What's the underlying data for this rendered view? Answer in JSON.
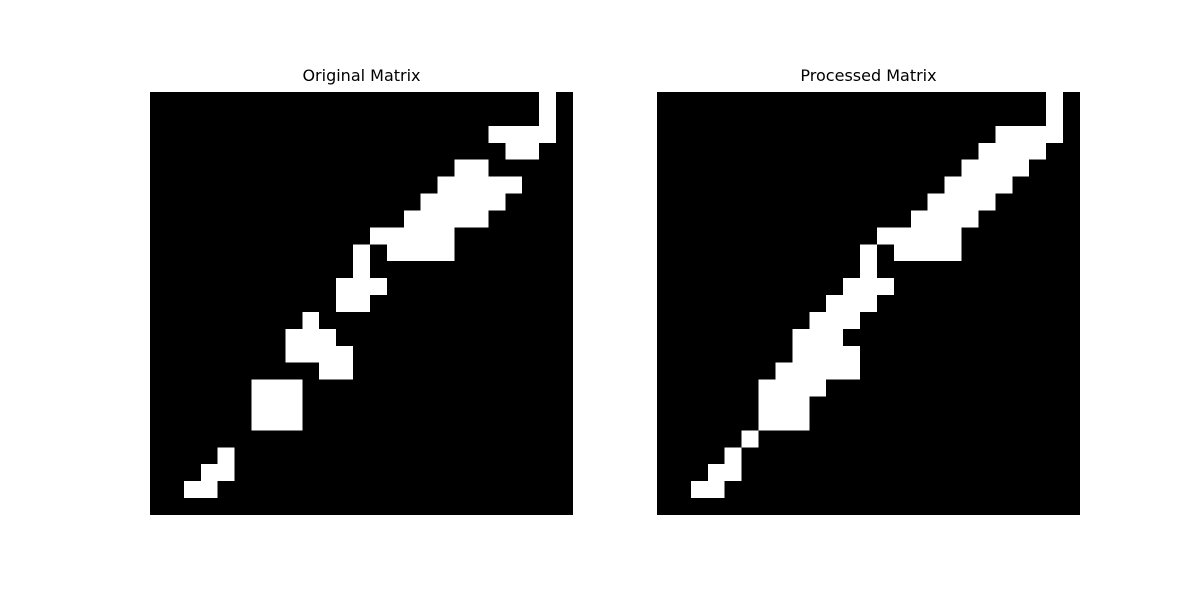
{
  "chart_data": [
    {
      "type": "heatmap",
      "title": "Original Matrix",
      "xlabel": "",
      "ylabel": "",
      "grid": false,
      "colormap": {
        "0": "#000000",
        "1": "#ffffff"
      },
      "rows": 25,
      "cols": 25,
      "matrix": [
        [
          0,
          0,
          0,
          0,
          0,
          0,
          0,
          0,
          0,
          0,
          0,
          0,
          0,
          0,
          0,
          0,
          0,
          0,
          0,
          0,
          0,
          0,
          0,
          1,
          0
        ],
        [
          0,
          0,
          0,
          0,
          0,
          0,
          0,
          0,
          0,
          0,
          0,
          0,
          0,
          0,
          0,
          0,
          0,
          0,
          0,
          0,
          0,
          0,
          0,
          1,
          0
        ],
        [
          0,
          0,
          0,
          0,
          0,
          0,
          0,
          0,
          0,
          0,
          0,
          0,
          0,
          0,
          0,
          0,
          0,
          0,
          0,
          0,
          1,
          1,
          1,
          1,
          0
        ],
        [
          0,
          0,
          0,
          0,
          0,
          0,
          0,
          0,
          0,
          0,
          0,
          0,
          0,
          0,
          0,
          0,
          0,
          0,
          0,
          0,
          0,
          1,
          1,
          0,
          0
        ],
        [
          0,
          0,
          0,
          0,
          0,
          0,
          0,
          0,
          0,
          0,
          0,
          0,
          0,
          0,
          0,
          0,
          0,
          0,
          1,
          1,
          0,
          0,
          0,
          0,
          0
        ],
        [
          0,
          0,
          0,
          0,
          0,
          0,
          0,
          0,
          0,
          0,
          0,
          0,
          0,
          0,
          0,
          0,
          0,
          1,
          1,
          1,
          1,
          1,
          0,
          0,
          0
        ],
        [
          0,
          0,
          0,
          0,
          0,
          0,
          0,
          0,
          0,
          0,
          0,
          0,
          0,
          0,
          0,
          0,
          1,
          1,
          1,
          1,
          1,
          0,
          0,
          0,
          0
        ],
        [
          0,
          0,
          0,
          0,
          0,
          0,
          0,
          0,
          0,
          0,
          0,
          0,
          0,
          0,
          0,
          1,
          1,
          1,
          1,
          1,
          0,
          0,
          0,
          0,
          0
        ],
        [
          0,
          0,
          0,
          0,
          0,
          0,
          0,
          0,
          0,
          0,
          0,
          0,
          0,
          1,
          1,
          1,
          1,
          1,
          0,
          0,
          0,
          0,
          0,
          0,
          0
        ],
        [
          0,
          0,
          0,
          0,
          0,
          0,
          0,
          0,
          0,
          0,
          0,
          0,
          1,
          0,
          1,
          1,
          1,
          1,
          0,
          0,
          0,
          0,
          0,
          0,
          0
        ],
        [
          0,
          0,
          0,
          0,
          0,
          0,
          0,
          0,
          0,
          0,
          0,
          0,
          1,
          0,
          0,
          0,
          0,
          0,
          0,
          0,
          0,
          0,
          0,
          0,
          0
        ],
        [
          0,
          0,
          0,
          0,
          0,
          0,
          0,
          0,
          0,
          0,
          0,
          1,
          1,
          1,
          0,
          0,
          0,
          0,
          0,
          0,
          0,
          0,
          0,
          0,
          0
        ],
        [
          0,
          0,
          0,
          0,
          0,
          0,
          0,
          0,
          0,
          0,
          0,
          1,
          1,
          0,
          0,
          0,
          0,
          0,
          0,
          0,
          0,
          0,
          0,
          0,
          0
        ],
        [
          0,
          0,
          0,
          0,
          0,
          0,
          0,
          0,
          0,
          1,
          0,
          0,
          0,
          0,
          0,
          0,
          0,
          0,
          0,
          0,
          0,
          0,
          0,
          0,
          0
        ],
        [
          0,
          0,
          0,
          0,
          0,
          0,
          0,
          0,
          1,
          1,
          1,
          0,
          0,
          0,
          0,
          0,
          0,
          0,
          0,
          0,
          0,
          0,
          0,
          0,
          0
        ],
        [
          0,
          0,
          0,
          0,
          0,
          0,
          0,
          0,
          1,
          1,
          1,
          1,
          0,
          0,
          0,
          0,
          0,
          0,
          0,
          0,
          0,
          0,
          0,
          0,
          0
        ],
        [
          0,
          0,
          0,
          0,
          0,
          0,
          0,
          0,
          0,
          0,
          1,
          1,
          0,
          0,
          0,
          0,
          0,
          0,
          0,
          0,
          0,
          0,
          0,
          0,
          0
        ],
        [
          0,
          0,
          0,
          0,
          0,
          0,
          1,
          1,
          1,
          0,
          0,
          0,
          0,
          0,
          0,
          0,
          0,
          0,
          0,
          0,
          0,
          0,
          0,
          0,
          0
        ],
        [
          0,
          0,
          0,
          0,
          0,
          0,
          1,
          1,
          1,
          0,
          0,
          0,
          0,
          0,
          0,
          0,
          0,
          0,
          0,
          0,
          0,
          0,
          0,
          0,
          0
        ],
        [
          0,
          0,
          0,
          0,
          0,
          0,
          1,
          1,
          1,
          0,
          0,
          0,
          0,
          0,
          0,
          0,
          0,
          0,
          0,
          0,
          0,
          0,
          0,
          0,
          0
        ],
        [
          0,
          0,
          0,
          0,
          0,
          0,
          0,
          0,
          0,
          0,
          0,
          0,
          0,
          0,
          0,
          0,
          0,
          0,
          0,
          0,
          0,
          0,
          0,
          0,
          0
        ],
        [
          0,
          0,
          0,
          0,
          1,
          0,
          0,
          0,
          0,
          0,
          0,
          0,
          0,
          0,
          0,
          0,
          0,
          0,
          0,
          0,
          0,
          0,
          0,
          0,
          0
        ],
        [
          0,
          0,
          0,
          1,
          1,
          0,
          0,
          0,
          0,
          0,
          0,
          0,
          0,
          0,
          0,
          0,
          0,
          0,
          0,
          0,
          0,
          0,
          0,
          0,
          0
        ],
        [
          0,
          0,
          1,
          1,
          0,
          0,
          0,
          0,
          0,
          0,
          0,
          0,
          0,
          0,
          0,
          0,
          0,
          0,
          0,
          0,
          0,
          0,
          0,
          0,
          0
        ],
        [
          0,
          0,
          0,
          0,
          0,
          0,
          0,
          0,
          0,
          0,
          0,
          0,
          0,
          0,
          0,
          0,
          0,
          0,
          0,
          0,
          0,
          0,
          0,
          0,
          0
        ]
      ]
    },
    {
      "type": "heatmap",
      "title": "Processed Matrix",
      "xlabel": "",
      "ylabel": "",
      "grid": false,
      "colormap": {
        "0": "#000000",
        "1": "#ffffff"
      },
      "rows": 25,
      "cols": 25,
      "matrix": [
        [
          0,
          0,
          0,
          0,
          0,
          0,
          0,
          0,
          0,
          0,
          0,
          0,
          0,
          0,
          0,
          0,
          0,
          0,
          0,
          0,
          0,
          0,
          0,
          1,
          0
        ],
        [
          0,
          0,
          0,
          0,
          0,
          0,
          0,
          0,
          0,
          0,
          0,
          0,
          0,
          0,
          0,
          0,
          0,
          0,
          0,
          0,
          0,
          0,
          0,
          1,
          0
        ],
        [
          0,
          0,
          0,
          0,
          0,
          0,
          0,
          0,
          0,
          0,
          0,
          0,
          0,
          0,
          0,
          0,
          0,
          0,
          0,
          0,
          1,
          1,
          1,
          1,
          0
        ],
        [
          0,
          0,
          0,
          0,
          0,
          0,
          0,
          0,
          0,
          0,
          0,
          0,
          0,
          0,
          0,
          0,
          0,
          0,
          0,
          1,
          1,
          1,
          1,
          0,
          0
        ],
        [
          0,
          0,
          0,
          0,
          0,
          0,
          0,
          0,
          0,
          0,
          0,
          0,
          0,
          0,
          0,
          0,
          0,
          0,
          1,
          1,
          1,
          1,
          0,
          0,
          0
        ],
        [
          0,
          0,
          0,
          0,
          0,
          0,
          0,
          0,
          0,
          0,
          0,
          0,
          0,
          0,
          0,
          0,
          0,
          1,
          1,
          1,
          1,
          0,
          0,
          0,
          0
        ],
        [
          0,
          0,
          0,
          0,
          0,
          0,
          0,
          0,
          0,
          0,
          0,
          0,
          0,
          0,
          0,
          0,
          1,
          1,
          1,
          1,
          0,
          0,
          0,
          0,
          0
        ],
        [
          0,
          0,
          0,
          0,
          0,
          0,
          0,
          0,
          0,
          0,
          0,
          0,
          0,
          0,
          0,
          1,
          1,
          1,
          1,
          0,
          0,
          0,
          0,
          0,
          0
        ],
        [
          0,
          0,
          0,
          0,
          0,
          0,
          0,
          0,
          0,
          0,
          0,
          0,
          0,
          1,
          1,
          1,
          1,
          1,
          0,
          0,
          0,
          0,
          0,
          0,
          0
        ],
        [
          0,
          0,
          0,
          0,
          0,
          0,
          0,
          0,
          0,
          0,
          0,
          0,
          1,
          0,
          1,
          1,
          1,
          1,
          0,
          0,
          0,
          0,
          0,
          0,
          0
        ],
        [
          0,
          0,
          0,
          0,
          0,
          0,
          0,
          0,
          0,
          0,
          0,
          0,
          1,
          0,
          0,
          0,
          0,
          0,
          0,
          0,
          0,
          0,
          0,
          0,
          0
        ],
        [
          0,
          0,
          0,
          0,
          0,
          0,
          0,
          0,
          0,
          0,
          0,
          1,
          1,
          1,
          0,
          0,
          0,
          0,
          0,
          0,
          0,
          0,
          0,
          0,
          0
        ],
        [
          0,
          0,
          0,
          0,
          0,
          0,
          0,
          0,
          0,
          0,
          1,
          1,
          1,
          0,
          0,
          0,
          0,
          0,
          0,
          0,
          0,
          0,
          0,
          0,
          0
        ],
        [
          0,
          0,
          0,
          0,
          0,
          0,
          0,
          0,
          0,
          1,
          1,
          1,
          0,
          0,
          0,
          0,
          0,
          0,
          0,
          0,
          0,
          0,
          0,
          0,
          0
        ],
        [
          0,
          0,
          0,
          0,
          0,
          0,
          0,
          0,
          1,
          1,
          1,
          0,
          0,
          0,
          0,
          0,
          0,
          0,
          0,
          0,
          0,
          0,
          0,
          0,
          0
        ],
        [
          0,
          0,
          0,
          0,
          0,
          0,
          0,
          0,
          1,
          1,
          1,
          1,
          0,
          0,
          0,
          0,
          0,
          0,
          0,
          0,
          0,
          0,
          0,
          0,
          0
        ],
        [
          0,
          0,
          0,
          0,
          0,
          0,
          0,
          1,
          1,
          1,
          1,
          1,
          0,
          0,
          0,
          0,
          0,
          0,
          0,
          0,
          0,
          0,
          0,
          0,
          0
        ],
        [
          0,
          0,
          0,
          0,
          0,
          0,
          1,
          1,
          1,
          1,
          0,
          0,
          0,
          0,
          0,
          0,
          0,
          0,
          0,
          0,
          0,
          0,
          0,
          0,
          0
        ],
        [
          0,
          0,
          0,
          0,
          0,
          0,
          1,
          1,
          1,
          0,
          0,
          0,
          0,
          0,
          0,
          0,
          0,
          0,
          0,
          0,
          0,
          0,
          0,
          0,
          0
        ],
        [
          0,
          0,
          0,
          0,
          0,
          0,
          1,
          1,
          1,
          0,
          0,
          0,
          0,
          0,
          0,
          0,
          0,
          0,
          0,
          0,
          0,
          0,
          0,
          0,
          0
        ],
        [
          0,
          0,
          0,
          0,
          0,
          1,
          0,
          0,
          0,
          0,
          0,
          0,
          0,
          0,
          0,
          0,
          0,
          0,
          0,
          0,
          0,
          0,
          0,
          0,
          0
        ],
        [
          0,
          0,
          0,
          0,
          1,
          0,
          0,
          0,
          0,
          0,
          0,
          0,
          0,
          0,
          0,
          0,
          0,
          0,
          0,
          0,
          0,
          0,
          0,
          0,
          0
        ],
        [
          0,
          0,
          0,
          1,
          1,
          0,
          0,
          0,
          0,
          0,
          0,
          0,
          0,
          0,
          0,
          0,
          0,
          0,
          0,
          0,
          0,
          0,
          0,
          0,
          0
        ],
        [
          0,
          0,
          1,
          1,
          0,
          0,
          0,
          0,
          0,
          0,
          0,
          0,
          0,
          0,
          0,
          0,
          0,
          0,
          0,
          0,
          0,
          0,
          0,
          0,
          0
        ],
        [
          0,
          0,
          0,
          0,
          0,
          0,
          0,
          0,
          0,
          0,
          0,
          0,
          0,
          0,
          0,
          0,
          0,
          0,
          0,
          0,
          0,
          0,
          0,
          0,
          0
        ]
      ]
    }
  ]
}
